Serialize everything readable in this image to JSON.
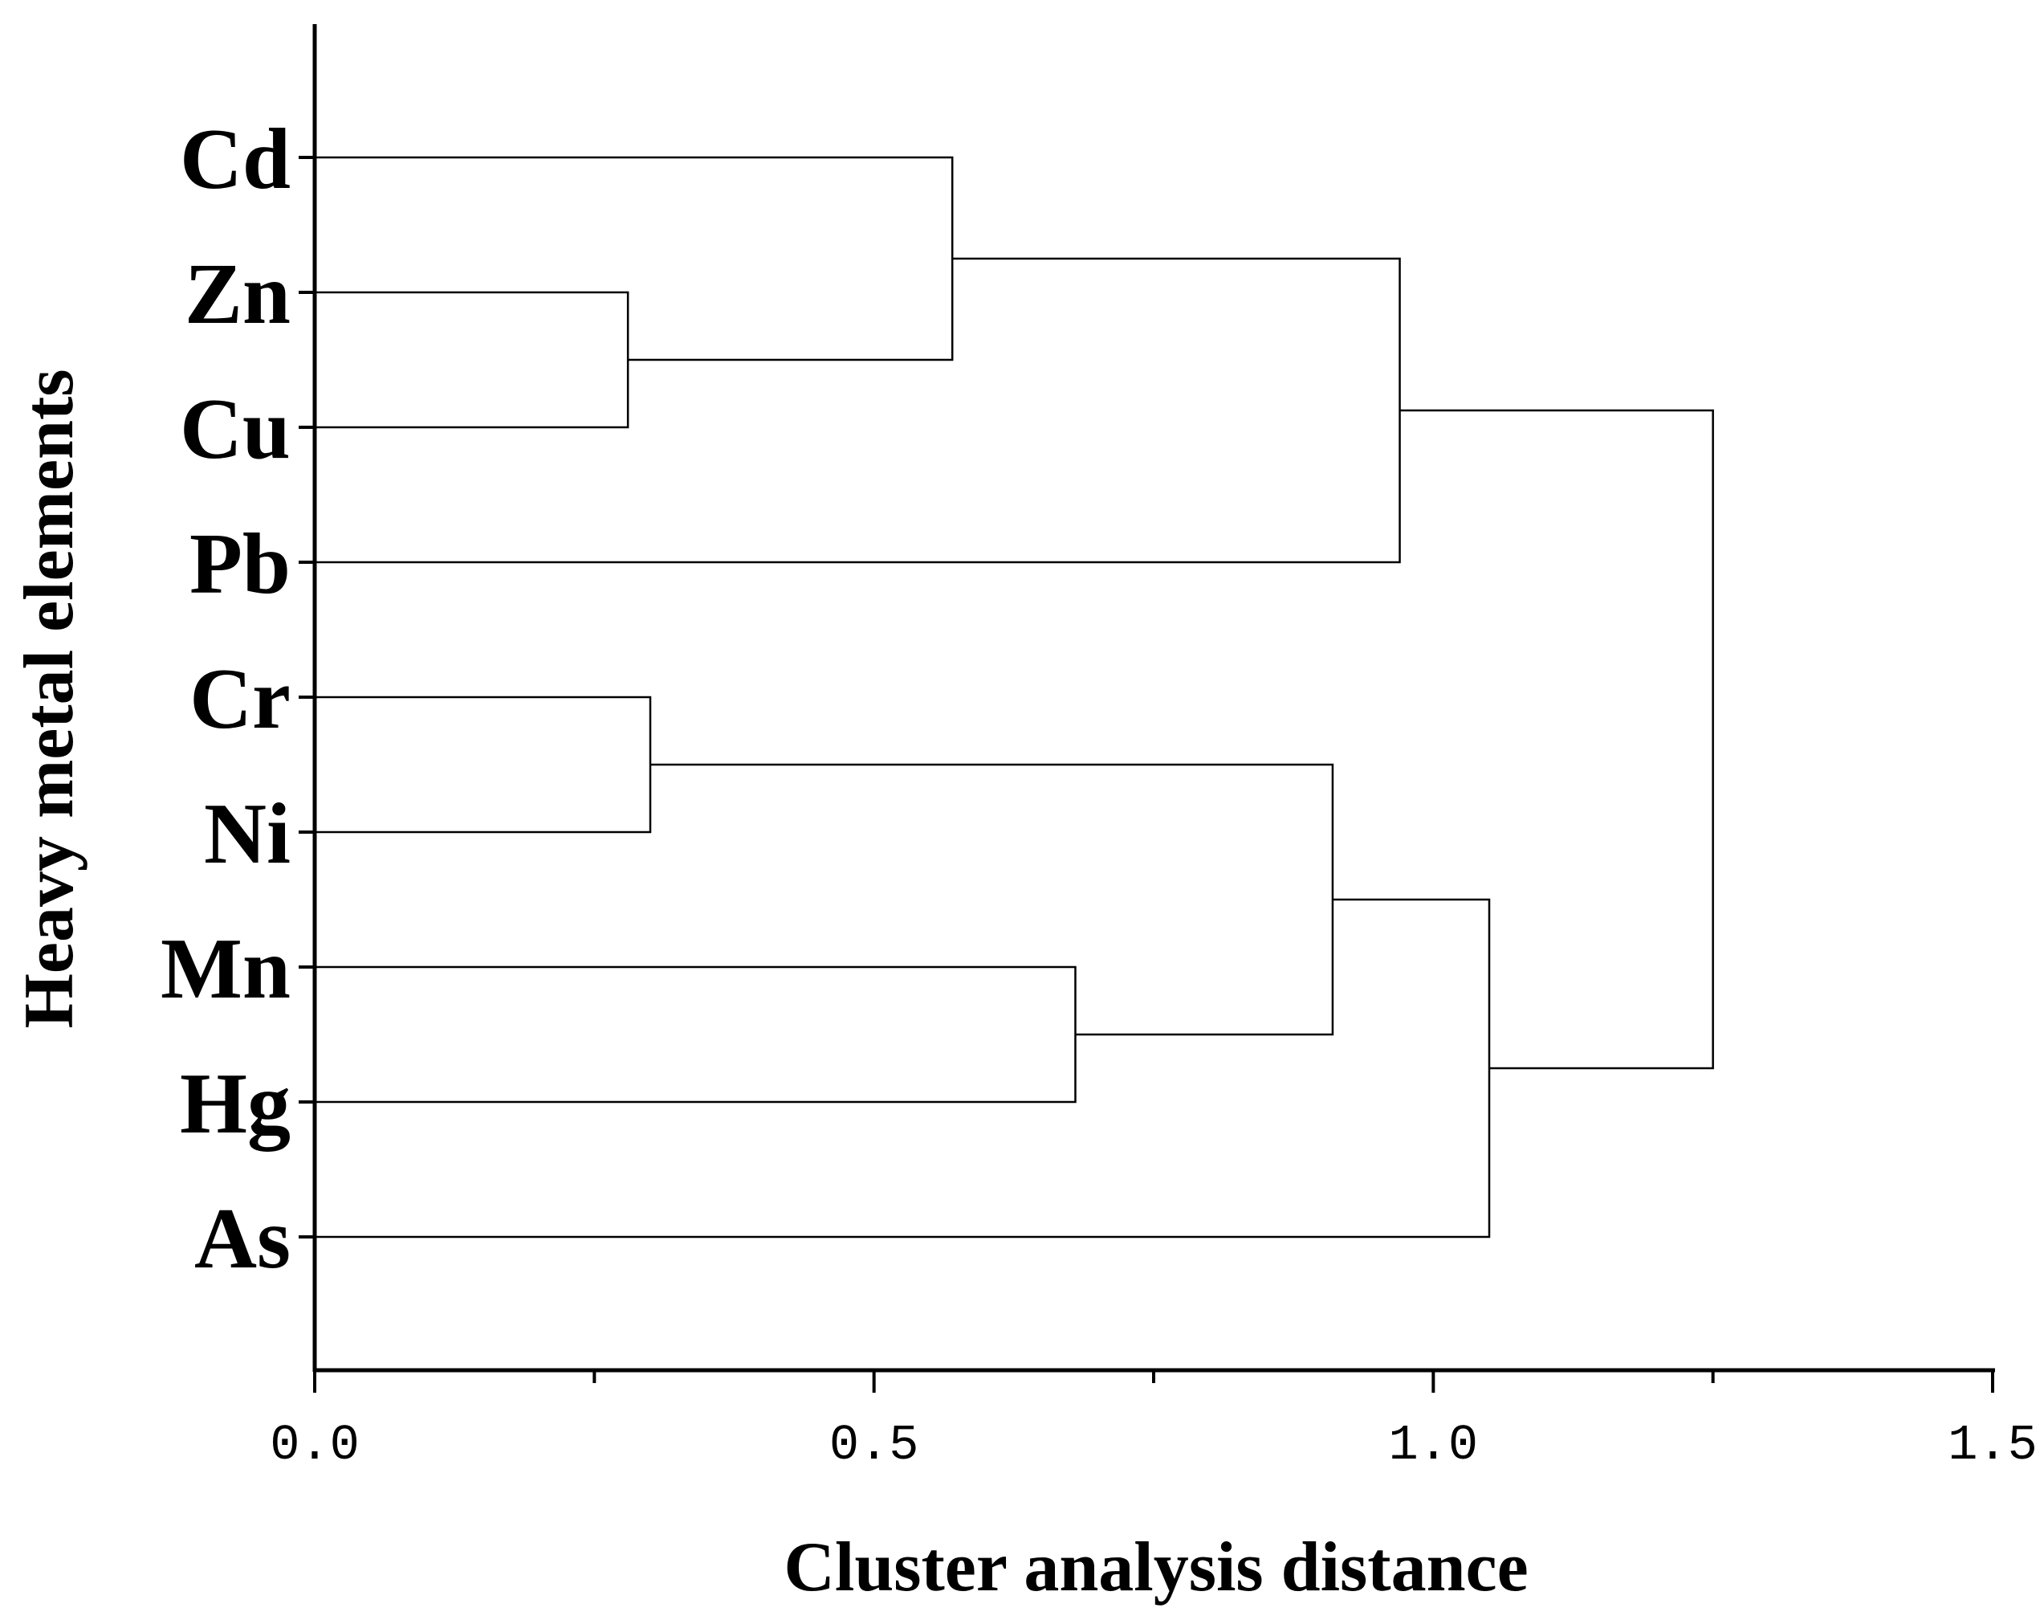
{
  "chart_data": {
    "type": "dendrogram",
    "xlabel": "Cluster analysis distance",
    "ylabel": "Heavy metal elements",
    "xlim": [
      0,
      1.5
    ],
    "x_ticks": [
      "0.0",
      "0.5",
      "1.0",
      "1.5"
    ],
    "x_tick_values": [
      0,
      0.5,
      1.0,
      1.5
    ],
    "x_minor_ticks": [
      0.25,
      0.75,
      1.25
    ],
    "leaves": [
      "Cd",
      "Zn",
      "Cu",
      "Pb",
      "Cr",
      "Ni",
      "Mn",
      "Hg",
      "As"
    ],
    "merges": [
      {
        "a": "Zn",
        "b": "Cu",
        "distance": 0.28
      },
      {
        "a": "Cr",
        "b": "Ni",
        "distance": 0.3
      },
      {
        "a": "Mn",
        "b": "Hg",
        "distance": 0.68
      },
      {
        "a": "Cd",
        "b": "Zn+Cu",
        "distance": 0.57
      },
      {
        "a": "Cr+Ni",
        "b": "Mn+Hg",
        "distance": 0.91
      },
      {
        "a": "Cd+Zn+Cu",
        "b": "Pb",
        "distance": 0.97
      },
      {
        "a": "Cr+Ni+Mn+Hg",
        "b": "As",
        "distance": 1.05
      },
      {
        "a": "Cd+Zn+Cu+Pb",
        "b": "Cr+Ni+Mn+Hg+As",
        "distance": 1.25
      }
    ],
    "grid": false,
    "legend": "none"
  }
}
